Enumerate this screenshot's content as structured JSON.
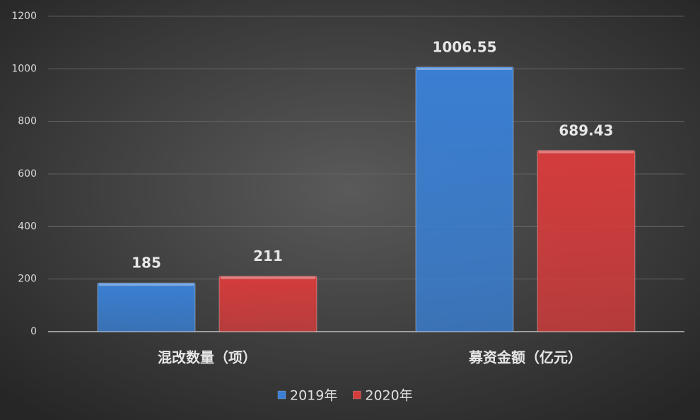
{
  "chart_data": {
    "type": "bar",
    "categories": [
      "混改数量（项）",
      "募资金额（亿元）"
    ],
    "series": [
      {
        "name": "2019年",
        "color": "#3a7fd3",
        "values": [
          185,
          1006.55
        ]
      },
      {
        "name": "2020年",
        "color": "#d43c3c",
        "values": [
          211,
          689.43
        ]
      }
    ],
    "ylim": [
      0,
      1200
    ],
    "yticks": [
      0,
      200,
      400,
      600,
      800,
      1000,
      1200
    ],
    "grid": true,
    "legend": "bottom"
  }
}
